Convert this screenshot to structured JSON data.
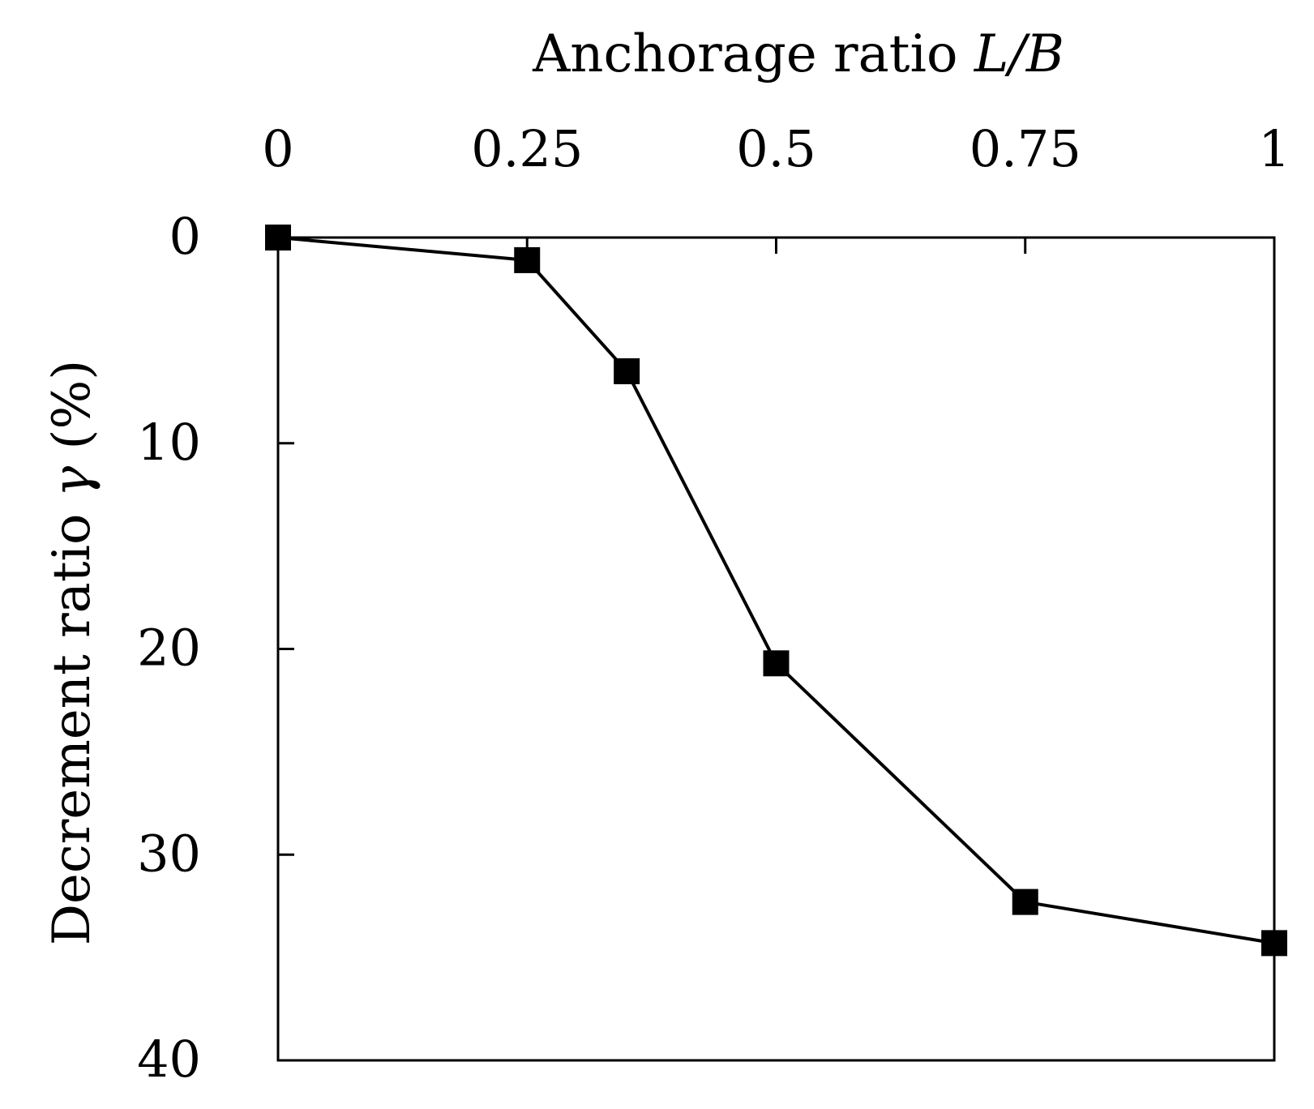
{
  "chart_data": {
    "type": "line",
    "xlabel": {
      "text": "Anchorage ratio ",
      "italic": "L/B"
    },
    "ylabel": {
      "text": "Decrement ratio ",
      "italic": "γ",
      "suffix": " (%)"
    },
    "x_axis_position": "top",
    "y_axis_inverted": true,
    "xlim": [
      0,
      1
    ],
    "ylim": [
      0,
      40
    ],
    "xticks": [
      0,
      0.25,
      0.5,
      0.75,
      1
    ],
    "xtick_labels": [
      "0",
      "0.25",
      "0.5",
      "0.75",
      "1"
    ],
    "yticks": [
      0,
      10,
      20,
      30,
      40
    ],
    "ytick_labels": [
      "0",
      "10",
      "20",
      "30",
      "40"
    ],
    "grid": false,
    "marker": "filled-square",
    "color": "#000000",
    "series": [
      {
        "x": [
          0,
          0.25,
          0.35,
          0.5,
          0.75,
          1
        ],
        "y": [
          0,
          1.1,
          6.5,
          20.7,
          32.3,
          34.3
        ]
      }
    ]
  }
}
